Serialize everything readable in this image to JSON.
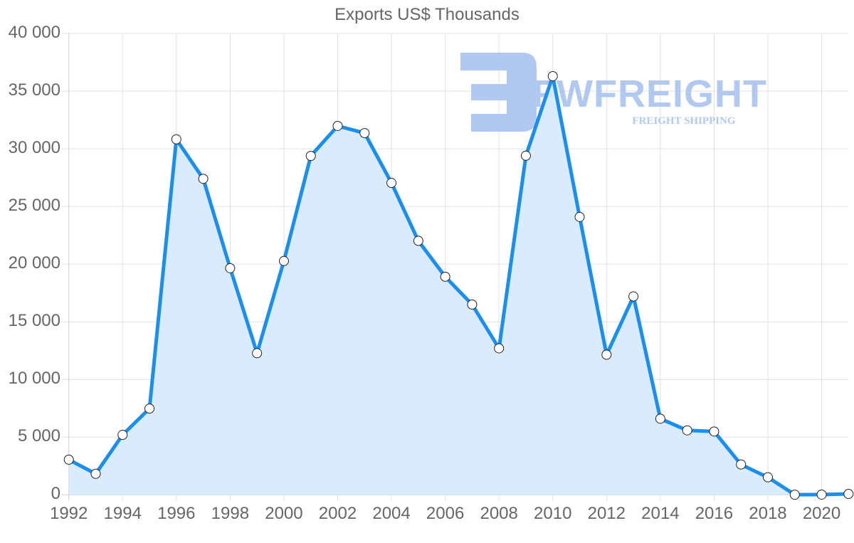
{
  "chart_data": {
    "type": "line",
    "title": "Exports US$ Thousands",
    "xlabel": "",
    "ylabel": "",
    "ylim": [
      0,
      40000
    ],
    "yticks": [
      0,
      5000,
      10000,
      15000,
      20000,
      25000,
      30000,
      35000,
      40000
    ],
    "ytick_labels": [
      "0",
      "5 000",
      "10 000",
      "15 000",
      "20 000",
      "25 000",
      "30 000",
      "35 000",
      "40 000"
    ],
    "xticks": [
      1992,
      1994,
      1996,
      1998,
      2000,
      2002,
      2004,
      2006,
      2008,
      2010,
      2012,
      2014,
      2016,
      2018,
      2020
    ],
    "xtick_labels": [
      "1992",
      "1994",
      "1996",
      "1998",
      "2000",
      "2002",
      "2004",
      "2006",
      "2008",
      "2010",
      "2012",
      "2014",
      "2016",
      "2018",
      "2020"
    ],
    "grid": true,
    "legend": "none",
    "fill": true,
    "x": [
      1992,
      1993,
      1994,
      1995,
      1996,
      1997,
      1998,
      1999,
      2000,
      2001,
      2002,
      2003,
      2004,
      2005,
      2006,
      2007,
      2008,
      2009,
      2010,
      2011,
      2012,
      2013,
      2014,
      2015,
      2016,
      2017,
      2018,
      2019,
      2020,
      2021
    ],
    "series": [
      {
        "name": "Exports US$ Thousands",
        "color": "#1a8ff0",
        "fill_color": "#d6eafc",
        "values": [
          3050,
          1820,
          5200,
          7480,
          30820,
          27400,
          19650,
          12280,
          20270,
          29380,
          31980,
          31360,
          27040,
          22020,
          18910,
          16500,
          12700,
          29400,
          36300,
          24090,
          12150,
          17200,
          6600,
          5590,
          5490,
          2630,
          1520,
          10,
          20,
          80
        ]
      }
    ]
  },
  "watermark": {
    "brand": "FWFREIGHT",
    "tagline": "FREIGHT SHIPPING",
    "color": "#a9c4f0"
  },
  "colors": {
    "text": "#666666",
    "grid": "#e0e0e0",
    "line": "#1a8ff0",
    "fill": "#d6eafc",
    "point_fill": "#ffffff",
    "point_stroke": "#222222"
  }
}
